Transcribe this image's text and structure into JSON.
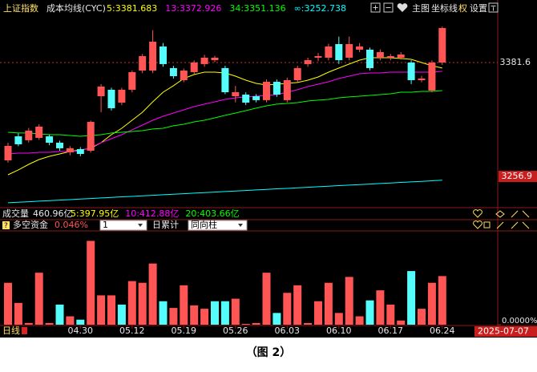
{
  "toolbar": {
    "items": [
      "主图",
      "坐标线",
      "权",
      "设置"
    ]
  },
  "volume_header": {
    "label": "成交量",
    "value": "460.96亿",
    "ma": [
      {
        "text": "5:397.95亿",
        "color": "#ffff00"
      },
      {
        "text": "10:412.88亿",
        "color": "#ff00ff"
      },
      {
        "text": "20:403.66亿",
        "color": "#00ff00"
      }
    ]
  },
  "caption": "（图 2）",
  "chart_data": [
    {
      "type": "candlestick",
      "title": "上证指数",
      "subtitle": "成本均线(CYC)",
      "up_color": "#ff5555",
      "down_color": "#54fcfc",
      "open": [
        3274.5,
        3300.8,
        3296.5,
        3299.1,
        3300.8,
        3293.8,
        3283.3,
        3286.8,
        3285.0,
        3344.7,
        3351.8,
        3337.7,
        3351.8,
        3372.8,
        3372.8,
        3399.2,
        3375.5,
        3362.3,
        3371.1,
        3379.9,
        3384.2,
        3375.5,
        3344.7,
        3346.5,
        3344.7,
        3340.4,
        3360.5,
        3340.4,
        3362.3,
        3379.9,
        3386.9,
        3386.9,
        3401.8,
        3386.9,
        3395.7,
        3395.7,
        3386.9,
        3386.9,
        3386.9,
        3381.6,
        3362.3,
        3350.9,
        3381.6
      ],
      "close": [
        3290.3,
        3292.1,
        3307.0,
        3311.4,
        3293.8,
        3287.7,
        3287.7,
        3281.5,
        3316.6,
        3355.3,
        3331.6,
        3351.8,
        3371.1,
        3388.6,
        3404.4,
        3379.9,
        3366.7,
        3372.8,
        3381.6,
        3386.9,
        3386.9,
        3349.1,
        3349.1,
        3337.7,
        3340.4,
        3360.5,
        3346.5,
        3362.3,
        3375.5,
        3384.2,
        3388.6,
        3399.2,
        3384.2,
        3401.8,
        3399.2,
        3375.5,
        3393.0,
        3388.6,
        3390.4,
        3362.3,
        3364.1,
        3381.6,
        3419.4
      ],
      "high": [
        3293.8,
        3304,
        3310,
        3314,
        3303,
        3296,
        3290,
        3289,
        3318,
        3358,
        3354,
        3354,
        3373,
        3391,
        3417,
        3403,
        3378,
        3375,
        3384,
        3390,
        3389,
        3378,
        3356,
        3349,
        3347,
        3363,
        3363,
        3365,
        3378,
        3387,
        3392,
        3402,
        3410,
        3410,
        3403,
        3398,
        3396,
        3391,
        3393,
        3384,
        3367,
        3384,
        3421
      ],
      "low": [
        3272,
        3290,
        3294,
        3297,
        3291,
        3285,
        3280,
        3279,
        3283,
        3327.2,
        3329,
        3335,
        3349,
        3370,
        3370,
        3377,
        3364,
        3360,
        3369,
        3377,
        3382,
        3347,
        3338,
        3335,
        3338,
        3338,
        3344,
        3338,
        3360,
        3377,
        3383,
        3384,
        3380,
        3384,
        3393,
        3373,
        3384,
        3384,
        3385,
        3358,
        3360,
        3349,
        3379
      ],
      "series": [
        {
          "name": "5:3381.683",
          "color": "#ffff00",
          "values": [
            3258.7,
            3264.0,
            3270.1,
            3275.4,
            3278.9,
            3281.5,
            3284.2,
            3285.9,
            3287.7,
            3293.8,
            3302.6,
            3309.6,
            3318.4,
            3327.2,
            3338.6,
            3349.1,
            3356.2,
            3364.1,
            3368.4,
            3371.1,
            3371.1,
            3370.2,
            3366.7,
            3362.3,
            3358.8,
            3357.0,
            3357.9,
            3358.8,
            3359.7,
            3362.3,
            3365.8,
            3371.1,
            3375.5,
            3379.9,
            3384.2,
            3386.9,
            3386.9,
            3386.9,
            3386.0,
            3385.1,
            3381.6,
            3378.1,
            3375.5
          ]
        },
        {
          "name": "13:3372.926",
          "color": "#ff00ff",
          "values": [
            3281.5,
            3282.4,
            3282.4,
            3283.3,
            3283.3,
            3284.2,
            3284.2,
            3285.0,
            3288.5,
            3293.8,
            3298.2,
            3302.6,
            3307.9,
            3313.1,
            3318.4,
            3322.8,
            3326.3,
            3329.8,
            3333.3,
            3336.0,
            3338.6,
            3341.2,
            3343.0,
            3343.9,
            3344.7,
            3345.6,
            3346.5,
            3349.1,
            3351.8,
            3355.3,
            3357.9,
            3360.5,
            3364.1,
            3366.7,
            3369.3,
            3370.2,
            3370.2,
            3371.1,
            3371.1,
            3371.1,
            3371.1,
            3371.1,
            3372.0
          ]
        },
        {
          "name": "34:3351.136",
          "color": "#00ff00",
          "values": [
            3305.2,
            3304.4,
            3304.4,
            3303.5,
            3302.6,
            3302.6,
            3301.7,
            3300.8,
            3301.7,
            3302.6,
            3304.4,
            3305.2,
            3306.1,
            3307.0,
            3308.8,
            3309.6,
            3312.3,
            3314.0,
            3316.6,
            3318.4,
            3321.0,
            3323.7,
            3326.3,
            3328.9,
            3331.6,
            3334.2,
            3336.0,
            3336.8,
            3337.7,
            3339.5,
            3340.4,
            3341.2,
            3343.0,
            3343.9,
            3344.7,
            3345.6,
            3346.5,
            3347.4,
            3349.1,
            3349.1,
            3350.0,
            3350.0,
            3350.9
          ]
        },
        {
          "name": "∞:3252.738",
          "color": "#00ffff",
          "values": [
            3228.0,
            3228.6,
            3229.2,
            3229.8,
            3230.3,
            3230.9,
            3231.5,
            3232.1,
            3232.7,
            3233.3,
            3233.9,
            3234.5,
            3235.0,
            3235.6,
            3236.2,
            3236.8,
            3237.4,
            3238.0,
            3238.6,
            3239.2,
            3239.7,
            3240.3,
            3240.9,
            3241.5,
            3242.1,
            3242.7,
            3243.3,
            3243.8,
            3244.4,
            3245.0,
            3245.6,
            3246.2,
            3246.8,
            3247.4,
            3248.0,
            3248.5,
            3249.1,
            3249.7,
            3250.3,
            3250.9,
            3251.5,
            3252.1,
            3252.7
          ]
        }
      ],
      "ylim": [
        3226.2,
        3441.3
      ],
      "yticks": [
        3381.6,
        3256.9
      ]
    },
    {
      "type": "bar",
      "title": "多空资金",
      "subtitle": "0.046%",
      "controls": [
        "1",
        "日累计",
        "同向柱"
      ],
      "period": "日线",
      "date_box": "2025-07-07",
      "categories": [
        null,
        null,
        null,
        null,
        null,
        null,
        null,
        "04.30",
        null,
        null,
        null,
        null,
        "05.12",
        null,
        null,
        null,
        null,
        "05.19",
        null,
        null,
        null,
        null,
        "05.26",
        null,
        null,
        null,
        null,
        "06.03",
        null,
        null,
        null,
        null,
        "06.10",
        null,
        null,
        null,
        null,
        "06.17",
        null,
        null,
        null,
        null,
        "06.24"
      ],
      "values": [
        0.5,
        0.26,
        0.02,
        0.62,
        0.02,
        0.24,
        0.1,
        0.06,
        1.0,
        0.35,
        0.35,
        0.24,
        0.52,
        0.5,
        0.73,
        0.28,
        0.2,
        0.47,
        0.23,
        0.19,
        0.28,
        0.28,
        0.31,
        0.01,
        0.02,
        0.62,
        0.14,
        0.38,
        0.47,
        0.02,
        0.28,
        0.5,
        0.14,
        0.57,
        0.1,
        0.29,
        0.41,
        0.24,
        0.05,
        0.64,
        0.19,
        0.5,
        0.58
      ],
      "colors": [
        "#ff5555",
        "#ff5555",
        "#ff5555",
        "#ff5555",
        "#ff5555",
        "#54fcfc",
        "#ff5555",
        "#54fcfc",
        "#ff5555",
        "#ff5555",
        "#ff5555",
        "#54fcfc",
        "#ff5555",
        "#ff5555",
        "#ff5555",
        "#54fcfc",
        "#ff5555",
        "#ff5555",
        "#ff5555",
        "#ff5555",
        "#54fcfc",
        "#54fcfc",
        "#ff5555",
        "#ff5555",
        "#ff5555",
        "#ff5555",
        "#54fcfc",
        "#ff5555",
        "#ff5555",
        "#ff5555",
        "#ff5555",
        "#ff5555",
        "#ff5555",
        "#ff5555",
        "#ff5555",
        "#54fcfc",
        "#ff5555",
        "#ff5555",
        "#ff5555",
        "#54fcfc",
        "#ff5555",
        "#ff5555",
        "#ff5555"
      ],
      "ylim": [
        0,
        1.1
      ],
      "yticks": [
        {
          "value": 0,
          "label": "0.0000%"
        }
      ]
    }
  ]
}
